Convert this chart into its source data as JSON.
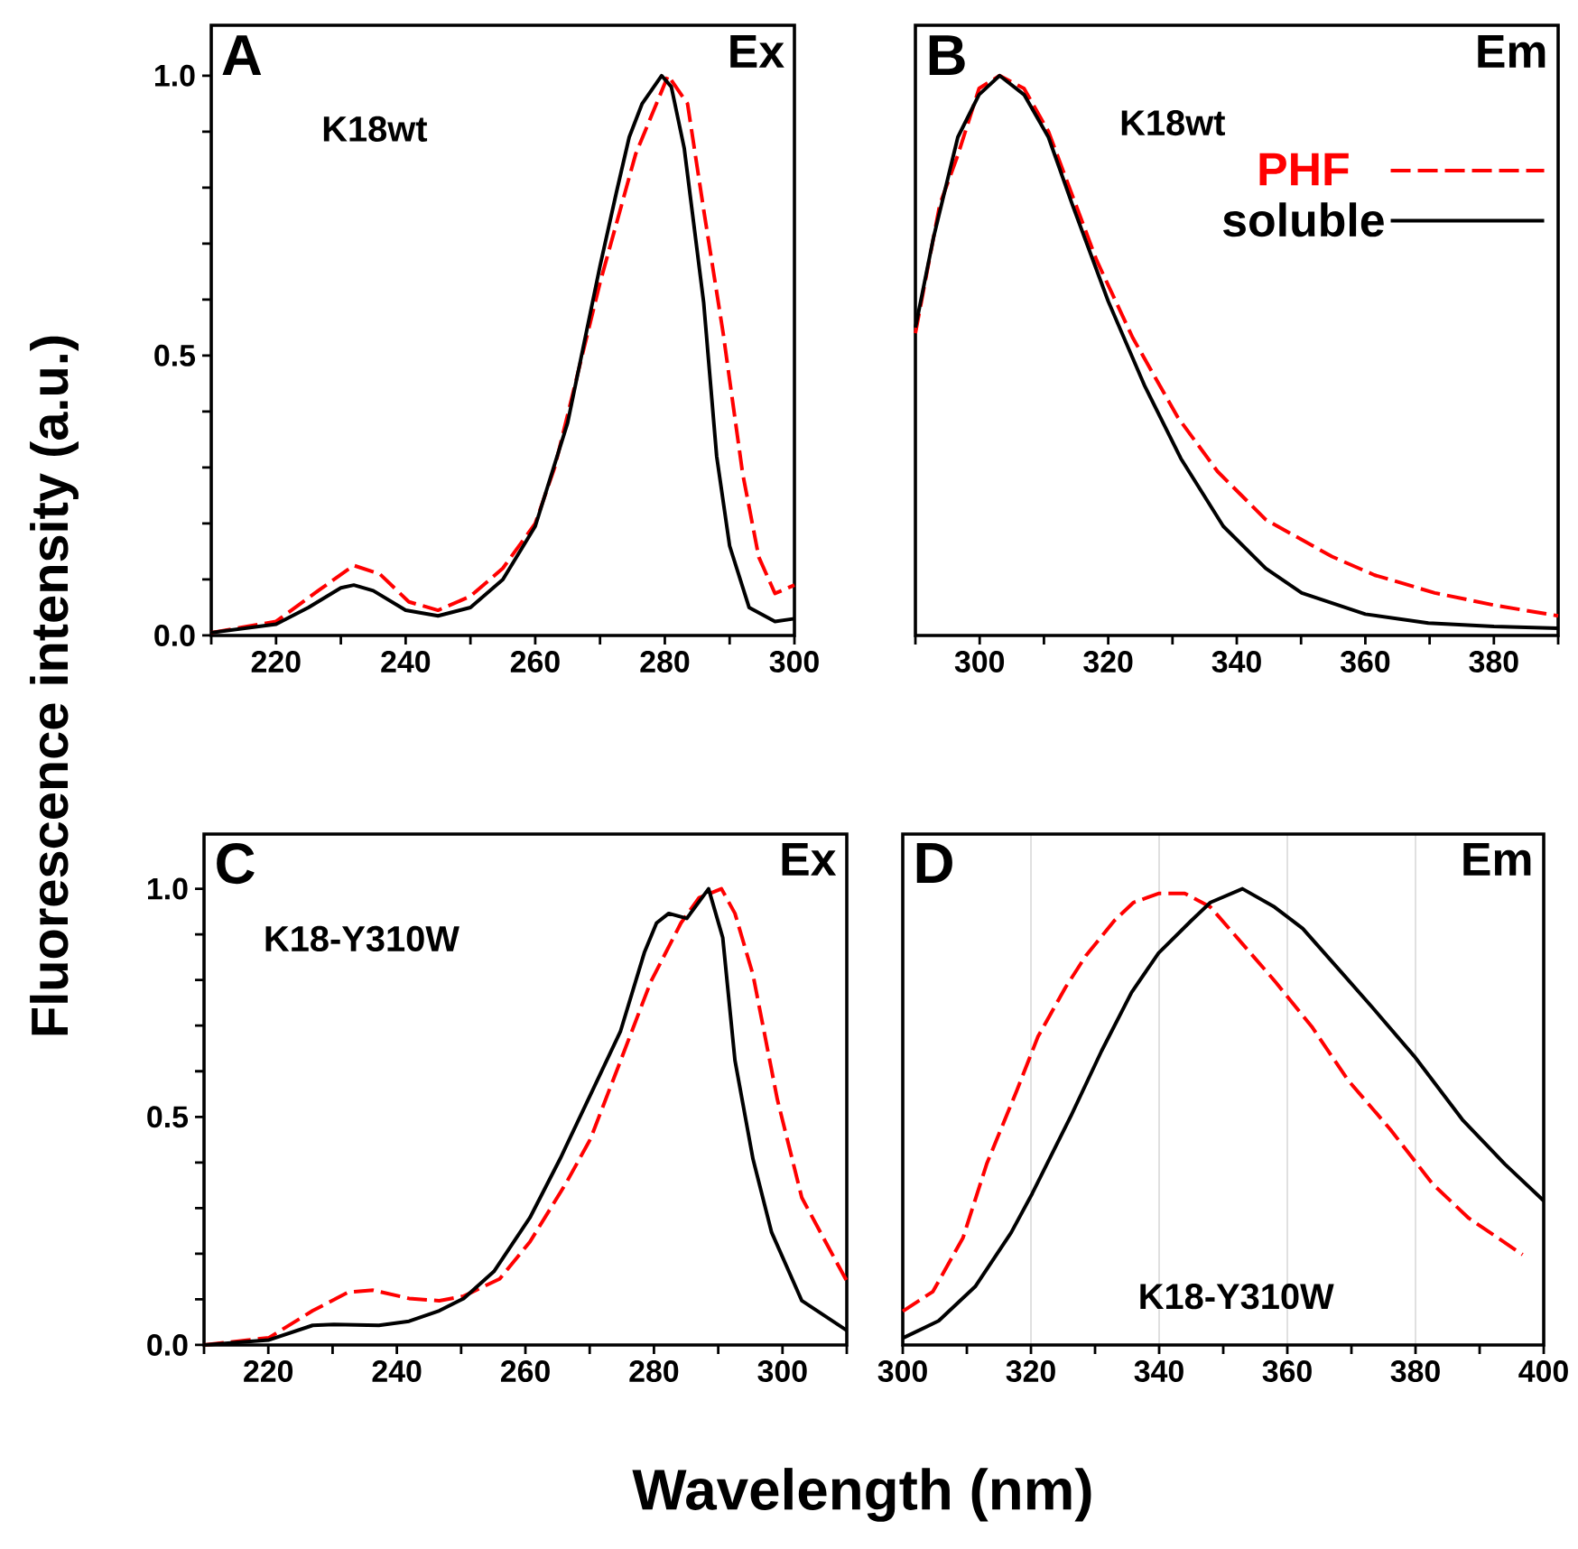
{
  "chart_data": [
    {
      "type": "line",
      "ylabel": "Fluorescence intensity (a.u.)",
      "annotations": [
        "A",
        "Ex",
        "K18wt"
      ],
      "xlim": [
        210,
        300
      ],
      "ylim": [
        0,
        1.09
      ],
      "xticks": [
        {
          "value": 210,
          "label": null
        },
        220,
        {
          "value": 230,
          "label": null
        },
        240,
        {
          "value": 250,
          "label": null
        },
        260,
        {
          "value": 270,
          "label": null
        },
        280,
        {
          "value": 290,
          "label": null
        },
        300
      ],
      "yticks": [
        {
          "value": 0,
          "label": "0.0"
        },
        {
          "value": 0.1,
          "label": null
        },
        {
          "value": 0.2,
          "label": null
        },
        {
          "value": 0.3,
          "label": null
        },
        {
          "value": 0.4,
          "label": null
        },
        {
          "value": 0.5,
          "label": "0.5"
        },
        {
          "value": 0.6,
          "label": null
        },
        {
          "value": 0.7,
          "label": null
        },
        {
          "value": 0.8,
          "label": null
        },
        {
          "value": 0.9,
          "label": null
        },
        {
          "value": 1,
          "label": "1.0"
        }
      ],
      "series": [
        {
          "color": "#ff0000",
          "line_style": "dashed",
          "x": [
            210,
            220,
            226.5,
            232,
            236,
            240.5,
            245,
            250,
            255,
            260,
            263,
            270,
            275.5,
            280.5,
            283.5,
            286,
            289,
            292,
            294.5,
            297,
            300
          ],
          "values": [
            0.005,
            0.025,
            0.08,
            0.125,
            0.11,
            0.06,
            0.045,
            0.07,
            0.12,
            0.2,
            0.3,
            0.63,
            0.86,
            1.0,
            0.95,
            0.76,
            0.54,
            0.29,
            0.14,
            0.075,
            0.09
          ]
        },
        {
          "color": "#000000",
          "line_style": "solid",
          "x": [
            210,
            220,
            225,
            230,
            232,
            235,
            240,
            245,
            250,
            255,
            260,
            265,
            270,
            272.5,
            274.5,
            276.5,
            279.5,
            281,
            283,
            286,
            288,
            290,
            293,
            297,
            300
          ],
          "values": [
            0.005,
            0.02,
            0.05,
            0.085,
            0.09,
            0.08,
            0.045,
            0.035,
            0.05,
            0.1,
            0.195,
            0.38,
            0.66,
            0.79,
            0.89,
            0.95,
            1.0,
            0.98,
            0.87,
            0.594,
            0.32,
            0.16,
            0.05,
            0.025,
            0.03
          ]
        }
      ]
    },
    {
      "type": "line",
      "annotations": [
        "B",
        "Em",
        "K18wt"
      ],
      "tick_labels": "x",
      "legend": "right",
      "xlim": [
        290,
        390
      ],
      "ylim": [
        0,
        1.09
      ],
      "xticks": [
        {
          "value": 290,
          "label": null
        },
        300,
        {
          "value": 310,
          "label": null
        },
        320,
        {
          "value": 330,
          "label": null
        },
        340,
        {
          "value": 350,
          "label": null
        },
        360,
        {
          "value": 370,
          "label": null
        },
        380,
        {
          "value": 390,
          "label": null
        }
      ],
      "series": [
        {
          "name": "PHF",
          "color": "#ff0000",
          "line_style": "dashed",
          "x": [
            290,
            293.8,
            296.6,
            299.9,
            303.1,
            306.9,
            310.7,
            318.2,
            323.8,
            330.8,
            337,
            344.5,
            354.8,
            361.4,
            370.8,
            380.1,
            390
          ],
          "values": [
            0.54,
            0.77,
            0.858,
            0.977,
            1.0,
            0.977,
            0.9,
            0.67,
            0.532,
            0.39,
            0.293,
            0.207,
            0.141,
            0.108,
            0.076,
            0.054,
            0.035
          ]
        },
        {
          "name": "soluble",
          "color": "#000000",
          "line_style": "solid",
          "x": [
            290,
            292.8,
            296.6,
            299.9,
            303.1,
            306.9,
            310.7,
            314.4,
            320,
            325.7,
            331.3,
            337.9,
            344.5,
            350.1,
            360,
            369.8,
            380,
            390
          ],
          "values": [
            0.55,
            0.71,
            0.89,
            0.966,
            1.0,
            0.966,
            0.89,
            0.77,
            0.597,
            0.445,
            0.316,
            0.195,
            0.12,
            0.076,
            0.038,
            0.022,
            0.016,
            0.013
          ]
        }
      ]
    },
    {
      "type": "line",
      "xlabel": "Wavelength (nm)",
      "annotations": [
        "C",
        "Ex",
        "K18-Y310W"
      ],
      "xlim": [
        210,
        310
      ],
      "ylim": [
        0,
        1.12
      ],
      "xticks": [
        {
          "value": 210,
          "label": null
        },
        220,
        {
          "value": 230,
          "label": null
        },
        240,
        {
          "value": 250,
          "label": null
        },
        260,
        {
          "value": 270,
          "label": null
        },
        280,
        {
          "value": 290,
          "label": null
        },
        300,
        {
          "value": 310,
          "label": null
        }
      ],
      "yticks": [
        {
          "value": 0,
          "label": "0.0"
        },
        {
          "value": 0.1,
          "label": null
        },
        {
          "value": 0.2,
          "label": null
        },
        {
          "value": 0.3,
          "label": null
        },
        {
          "value": 0.4,
          "label": null
        },
        {
          "value": 0.5,
          "label": "0.5"
        },
        {
          "value": 0.6,
          "label": null
        },
        {
          "value": 0.7,
          "label": null
        },
        {
          "value": 0.8,
          "label": null
        },
        {
          "value": 0.9,
          "label": null
        },
        {
          "value": 1,
          "label": "1.0"
        }
      ],
      "series": [
        {
          "color": "#ff0000",
          "line_style": "dashed",
          "x": [
            210,
            220.1,
            226.9,
            232.5,
            236.3,
            241.9,
            246.6,
            250.4,
            256,
            260.7,
            266.3,
            270.1,
            274.8,
            279.5,
            284.2,
            287,
            290.5,
            292.6,
            295.4,
            299.2,
            303,
            306.7,
            310
          ],
          "values": [
            0,
            0.016,
            0.075,
            0.116,
            0.12,
            0.102,
            0.097,
            0.107,
            0.145,
            0.226,
            0.354,
            0.451,
            0.623,
            0.796,
            0.925,
            0.98,
            1.0,
            0.946,
            0.812,
            0.538,
            0.323,
            0.226,
            0.14
          ]
        },
        {
          "color": "#000000",
          "line_style": "solid",
          "x": [
            210,
            220.1,
            226.9,
            230.2,
            237.2,
            241.9,
            246.6,
            250.4,
            255.1,
            260.7,
            265.4,
            270.1,
            274.8,
            278.5,
            280.4,
            282.3,
            285.1,
            288.5,
            290.7,
            292.6,
            295.4,
            298.3,
            303,
            310
          ],
          "values": [
            0,
            0.011,
            0.043,
            0.045,
            0.043,
            0.052,
            0.075,
            0.102,
            0.161,
            0.279,
            0.408,
            0.548,
            0.688,
            0.86,
            0.925,
            0.946,
            0.935,
            1.0,
            0.893,
            0.624,
            0.408,
            0.247,
            0.097,
            0.032
          ]
        }
      ]
    },
    {
      "type": "line",
      "annotations": [
        "D",
        "Em",
        "K18-Y310W"
      ],
      "tick_labels": "x",
      "grid": "x",
      "xlim": [
        300,
        400
      ],
      "ylim": [
        0,
        1.12
      ],
      "xticks": [
        300,
        {
          "value": 310,
          "label": null
        },
        320,
        {
          "value": 330,
          "label": null
        },
        340,
        {
          "value": 350,
          "label": null
        },
        360,
        {
          "value": 370,
          "label": null
        },
        380,
        {
          "value": 390,
          "label": null
        },
        400
      ],
      "series": [
        {
          "color": "#ff0000",
          "line_style": "dashed",
          "x": [
            300,
            304.7,
            309.4,
            313.1,
            317.8,
            321.1,
            325.4,
            328.6,
            333,
            336,
            340,
            344,
            348,
            351.6,
            358.2,
            363.8,
            369.5,
            376.1,
            382.6,
            388.3,
            396.7
          ],
          "values": [
            0.074,
            0.117,
            0.235,
            0.397,
            0.558,
            0.676,
            0.784,
            0.854,
            0.93,
            0.97,
            0.99,
            0.99,
            0.96,
            0.902,
            0.795,
            0.698,
            0.58,
            0.472,
            0.354,
            0.278,
            0.198
          ]
        },
        {
          "color": "#000000",
          "line_style": "solid",
          "x": [
            300,
            305.6,
            311.3,
            316.9,
            320.2,
            326.3,
            331,
            335.7,
            339.9,
            345,
            348,
            353,
            358,
            362.4,
            368.5,
            373.2,
            379.8,
            387.3,
            393.9,
            400
          ],
          "values": [
            0.015,
            0.053,
            0.128,
            0.246,
            0.332,
            0.504,
            0.644,
            0.773,
            0.859,
            0.93,
            0.97,
            1.0,
            0.96,
            0.913,
            0.816,
            0.741,
            0.633,
            0.494,
            0.397,
            0.316
          ]
        }
      ]
    }
  ]
}
